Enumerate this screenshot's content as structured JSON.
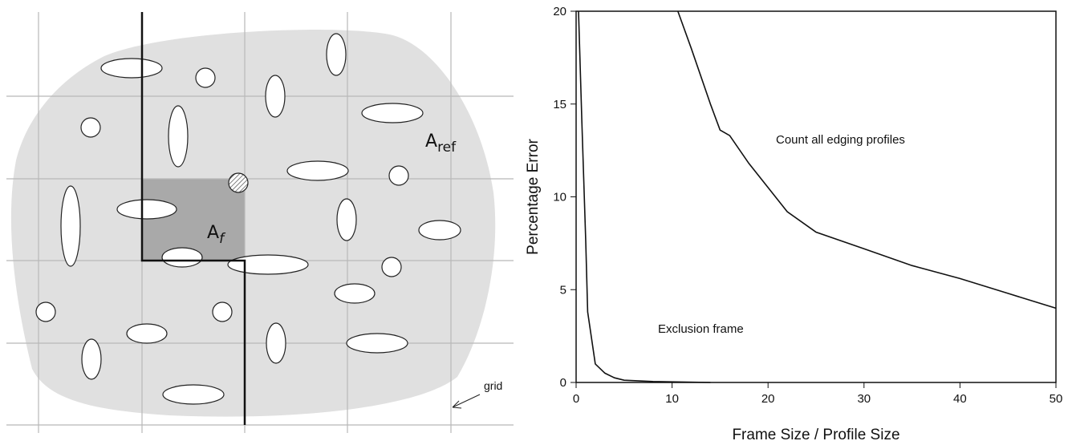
{
  "diagram": {
    "labels": [
      {
        "main": "A",
        "sub": "ref"
      },
      {
        "main": "A",
        "sub": "f"
      },
      {
        "main": "grid"
      }
    ]
  },
  "chart_data": {
    "type": "line",
    "x_label": "Frame Size / Profile Size",
    "y_label": "Percentage Error",
    "xlim": [
      0,
      50
    ],
    "ylim": [
      0,
      20
    ],
    "xticks": [
      0,
      10,
      20,
      30,
      40,
      50
    ],
    "yticks": [
      0,
      5,
      10,
      15,
      20
    ],
    "series": [
      {
        "color": "#111111",
        "x": [
          10.6,
          12,
          14,
          15,
          16,
          18,
          20,
          22,
          25,
          30,
          35,
          40,
          45,
          50
        ],
        "values": [
          20,
          18,
          15,
          13.6,
          13.3,
          11.8,
          10.5,
          9.2,
          8.1,
          7.2,
          6.3,
          5.6,
          4.8,
          4.0
        ]
      },
      {
        "color": "#111111",
        "x": [
          0.25,
          0.6,
          1,
          1.2,
          2,
          3,
          4,
          5,
          8,
          14
        ],
        "values": [
          20,
          14,
          7.6,
          3.8,
          1.0,
          0.5,
          0.25,
          0.12,
          0.05,
          0
        ]
      }
    ],
    "annotations": [
      "Count all edging profiles",
      "Exclusion frame"
    ]
  }
}
